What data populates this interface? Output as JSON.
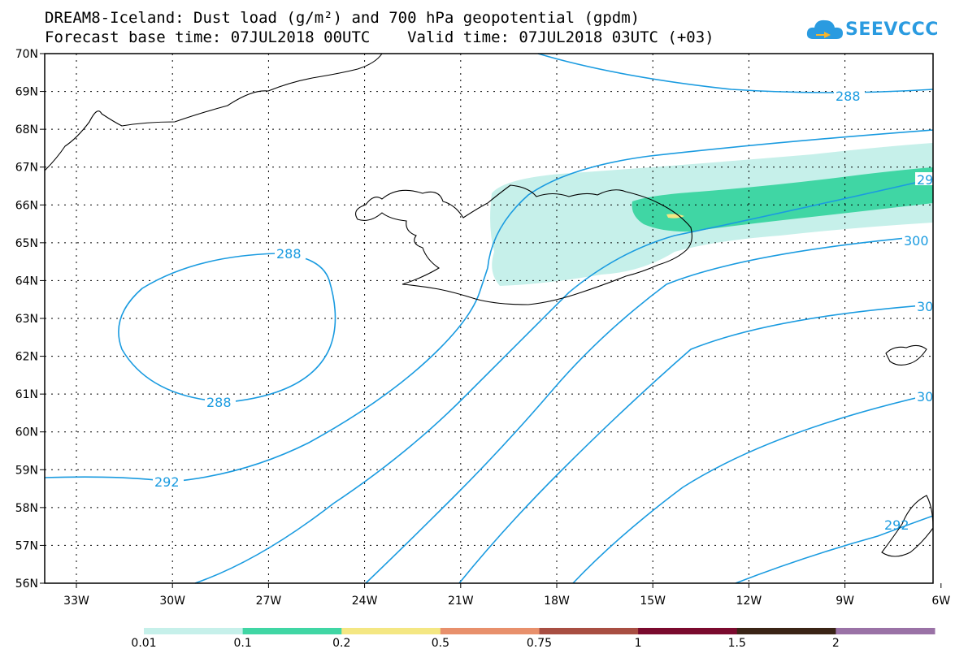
{
  "title_line1": "DREAM8-Iceland: Dust load (g/m²) and 700 hPa geopotential (gpdm)",
  "title_line2": "Forecast base time: 07JUL2018 00UTC    Valid time: 07JUL2018 03UTC (+03)",
  "logo_text": "SEEVCCC",
  "lat_labels": [
    "70N",
    "69N",
    "68N",
    "67N",
    "66N",
    "65N",
    "64N",
    "63N",
    "62N",
    "61N",
    "60N",
    "59N",
    "58N",
    "57N",
    "56N"
  ],
  "lon_labels": [
    "33W",
    "30W",
    "27W",
    "24W",
    "21W",
    "18W",
    "15W",
    "12W",
    "9W",
    "6W"
  ],
  "contour_labels": [
    "288",
    "288",
    "288",
    "292",
    "29",
    "300",
    "30",
    "30",
    "292"
  ],
  "legend": {
    "colors": [
      "#c6f0ea",
      "#40d6a4",
      "#f4e783",
      "#e8906c",
      "#a84e42",
      "#7a0a2e",
      "#3a2416",
      "#9a72a6"
    ],
    "labels": [
      "0.01",
      "0.1",
      "0.2",
      "0.5",
      "0.75",
      "1",
      "1.5",
      "2"
    ]
  },
  "colors": {
    "contour": "#1a9be0",
    "coast": "#000000",
    "grid": "#000000"
  }
}
